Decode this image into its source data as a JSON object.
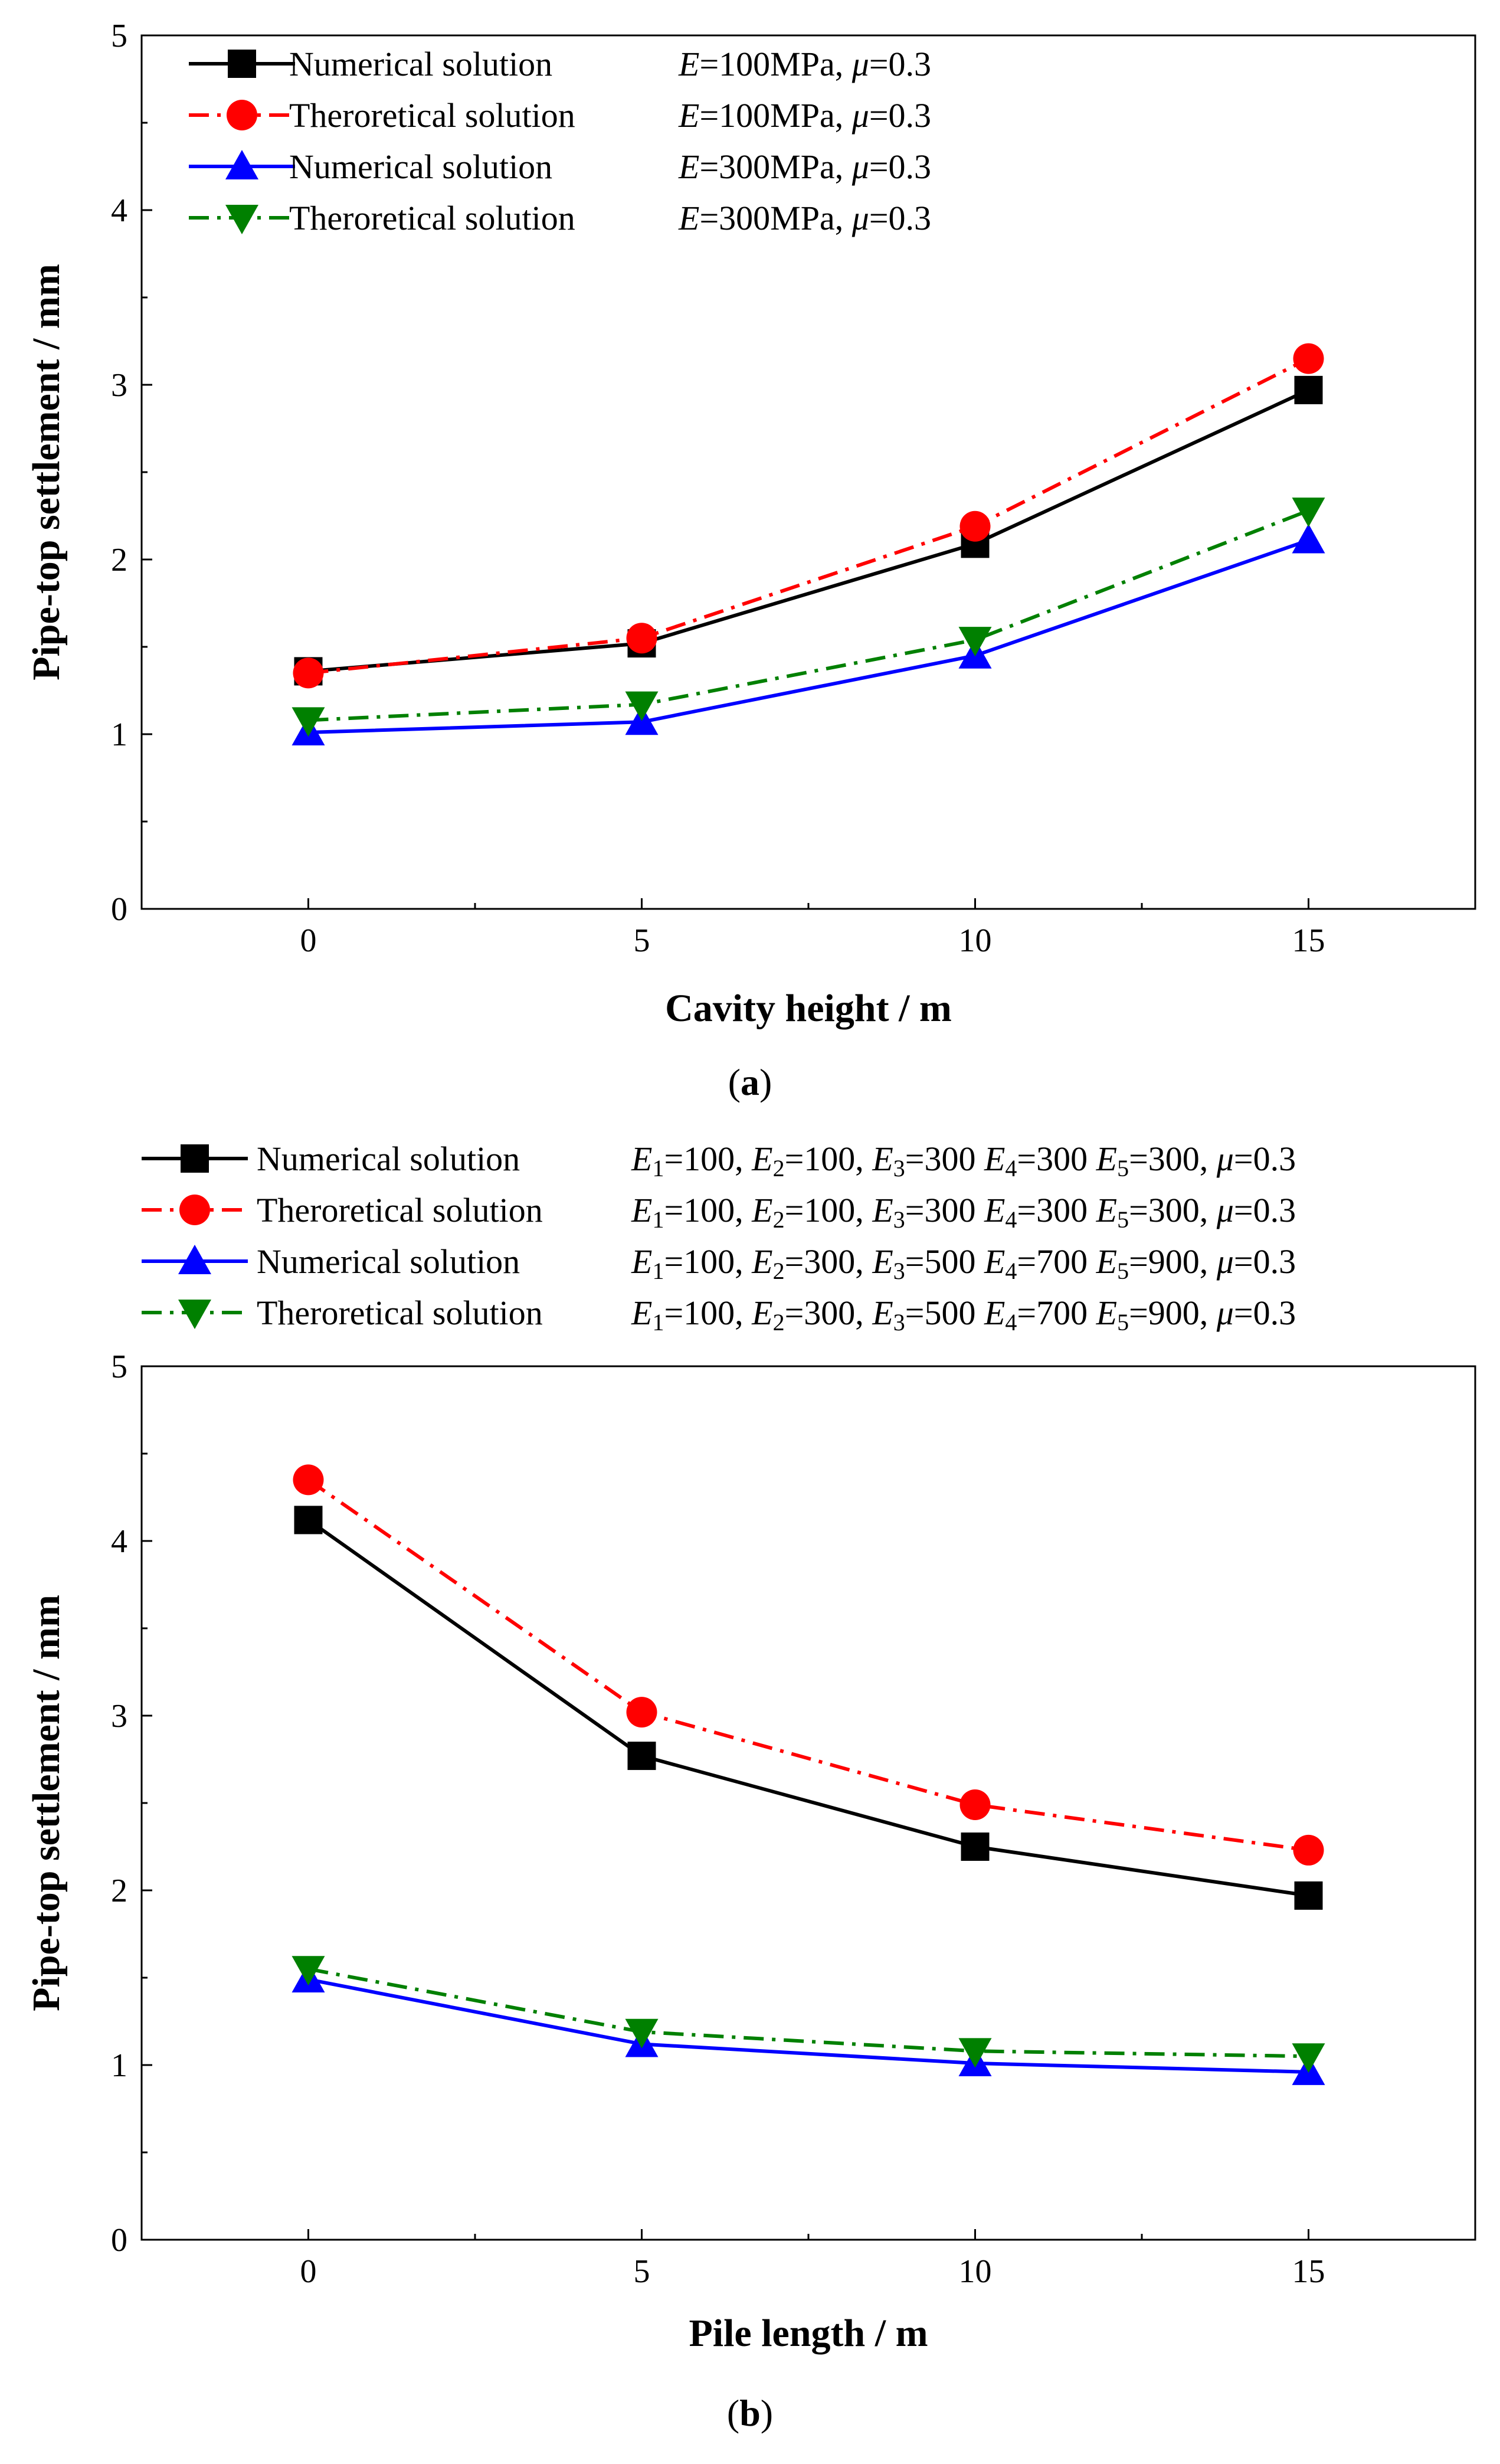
{
  "chart_data": [
    {
      "type": "line",
      "caption": "(a)",
      "caption_letter": "a",
      "xlabel": "Cavity height / m",
      "ylabel": "Pipe-top settlement / mm",
      "xlim": [
        -2.5,
        17.5
      ],
      "ylim": [
        0,
        5
      ],
      "xticks": [
        0,
        5,
        10,
        15
      ],
      "yticks": [
        0,
        1,
        2,
        3,
        4,
        5
      ],
      "x": [
        0,
        5,
        10,
        15
      ],
      "legend_position": "top-left",
      "series": [
        {
          "name": "Numerical solution",
          "params": "E=100MPa, μ=0.3",
          "color": "#000000",
          "marker": "square",
          "dash": "solid",
          "values": [
            1.36,
            1.52,
            2.09,
            2.97
          ]
        },
        {
          "name": "Theroretical solution",
          "params": "E=100MPa, μ=0.3",
          "color": "#ff0000",
          "marker": "circle",
          "dash": "dashdot",
          "values": [
            1.35,
            1.55,
            2.19,
            3.15
          ]
        },
        {
          "name": "Numerical solution",
          "params": "E=300MPa, μ=0.3",
          "color": "#0000ff",
          "marker": "triangle-up",
          "dash": "solid",
          "values": [
            1.01,
            1.07,
            1.45,
            2.11
          ]
        },
        {
          "name": "Theroretical solution",
          "params": "E=300MPa, μ=0.3",
          "color": "#008000",
          "marker": "triangle-down",
          "dash": "dashdot",
          "values": [
            1.08,
            1.17,
            1.54,
            2.28
          ]
        }
      ]
    },
    {
      "type": "line",
      "caption": "(b)",
      "caption_letter": "b",
      "xlabel": "Pile length / m",
      "ylabel": "Pipe-top settlement / mm",
      "xlim": [
        -2.5,
        17.5
      ],
      "ylim": [
        0,
        5
      ],
      "xticks": [
        0,
        5,
        10,
        15
      ],
      "yticks": [
        0,
        1,
        2,
        3,
        4,
        5
      ],
      "x": [
        0,
        5,
        10,
        15
      ],
      "legend_position": "above-plot",
      "series": [
        {
          "name": "Numerical solution",
          "params": "E1=100, E2=100, E3=300 E4=300 E5=300, μ=0.3",
          "color": "#000000",
          "marker": "square",
          "dash": "solid",
          "values": [
            4.12,
            2.77,
            2.25,
            1.97
          ]
        },
        {
          "name": "Theroretical solution",
          "params": "E1=100, E2=100, E3=300 E4=300 E5=300, μ=0.3",
          "color": "#ff0000",
          "marker": "circle",
          "dash": "dashdot",
          "values": [
            4.35,
            3.02,
            2.49,
            2.23
          ]
        },
        {
          "name": "Numerical solution",
          "params": "E1=100, E2=300, E3=500 E4=700 E5=900, μ=0.3",
          "color": "#0000ff",
          "marker": "triangle-up",
          "dash": "solid",
          "values": [
            1.49,
            1.12,
            1.01,
            0.96
          ]
        },
        {
          "name": "Theroretical solution",
          "params": "E1=100, E2=300, E3=500 E4=700 E5=900, μ=0.3",
          "color": "#008000",
          "marker": "triangle-down",
          "dash": "dashdot",
          "values": [
            1.55,
            1.19,
            1.08,
            1.05
          ]
        }
      ]
    }
  ]
}
